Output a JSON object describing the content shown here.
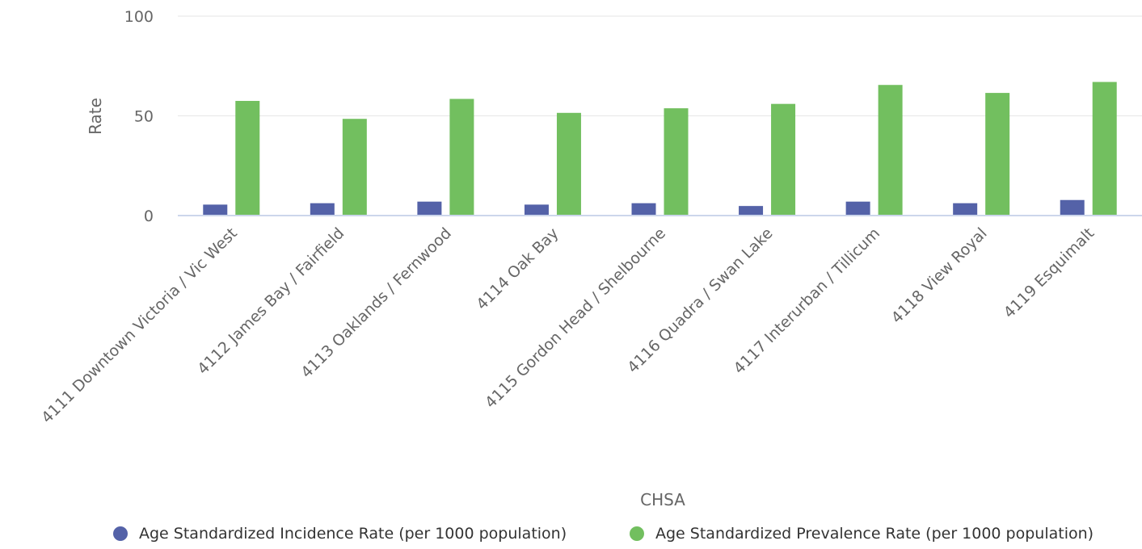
{
  "chart_data": {
    "type": "bar",
    "title": "",
    "xlabel": "CHSA",
    "ylabel": "Rate",
    "ylim": [
      0,
      100
    ],
    "yticks": [
      "0",
      "50",
      "100"
    ],
    "grid": true,
    "legend_position": "bottom",
    "categories": [
      "4111 Downtown Victoria / Vic West",
      "4112 James Bay / Fairfield",
      "4113 Oaklands / Fernwood",
      "4114 Oak Bay",
      "4115 Gordon Head / Shelbourne",
      "4116 Quadra / Swan Lake",
      "4117 Interurban / Tillicum",
      "4118 View Royal",
      "4119 Esquimalt"
    ],
    "series": [
      {
        "name": "Age Standardized Incidence Rate (per 1000 population)",
        "color": "#5462a8",
        "values": [
          5.5,
          6.2,
          7.0,
          5.5,
          6.2,
          4.8,
          7.0,
          6.2,
          7.8
        ]
      },
      {
        "name": "Age Standardized Prevalence Rate (per 1000 population)",
        "color": "#72bf5f",
        "values": [
          57.5,
          48.5,
          58.5,
          51.5,
          53.8,
          56.0,
          65.5,
          61.5,
          67.0
        ]
      }
    ]
  }
}
